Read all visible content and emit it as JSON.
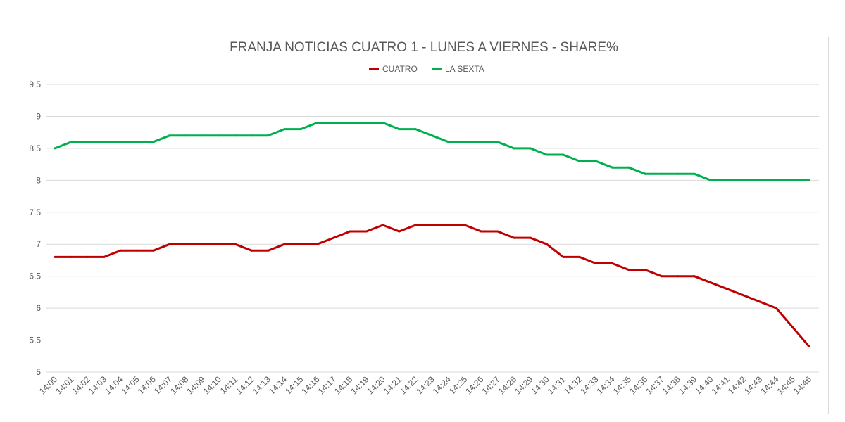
{
  "chart_data": {
    "type": "line",
    "title": "FRANJA NOTICIAS CUATRO 1 - LUNES A VIERNES - SHARE%",
    "xlabel": "",
    "ylabel": "",
    "ylim": [
      5,
      9.5
    ],
    "yticks": [
      "5",
      "5.5",
      "6",
      "6.5",
      "7",
      "7.5",
      "8",
      "8.5",
      "9",
      "9.5"
    ],
    "grid": true,
    "legend": "top",
    "categories": [
      "14:00",
      "14:01",
      "14:02",
      "14:03",
      "14:04",
      "14:05",
      "14:06",
      "14:07",
      "14:08",
      "14:09",
      "14:10",
      "14:11",
      "14:12",
      "14:13",
      "14:14",
      "14:15",
      "14:16",
      "14:17",
      "14:18",
      "14:19",
      "14:20",
      "14:21",
      "14:22",
      "14:23",
      "14:24",
      "14:25",
      "14:26",
      "14:27",
      "14:28",
      "14:29",
      "14:30",
      "14:31",
      "14:32",
      "14:33",
      "14:34",
      "14:35",
      "14:36",
      "14:37",
      "14:38",
      "14:39",
      "14:40",
      "14:41",
      "14:42",
      "14:43",
      "14:44",
      "14:45",
      "14:46"
    ],
    "series": [
      {
        "name": "CUATRO",
        "color": "#c00000",
        "values": [
          6.8,
          6.8,
          6.8,
          6.8,
          6.9,
          6.9,
          6.9,
          7.0,
          7.0,
          7.0,
          7.0,
          7.0,
          6.9,
          6.9,
          7.0,
          7.0,
          7.0,
          7.1,
          7.2,
          7.2,
          7.3,
          7.2,
          7.3,
          7.3,
          7.3,
          7.3,
          7.2,
          7.2,
          7.1,
          7.1,
          7.0,
          6.8,
          6.8,
          6.7,
          6.7,
          6.6,
          6.6,
          6.5,
          6.5,
          6.5,
          6.4,
          6.3,
          6.2,
          6.1,
          6.0,
          5.7,
          5.4
        ]
      },
      {
        "name": "LA SEXTA",
        "color": "#00b050",
        "values": [
          8.5,
          8.6,
          8.6,
          8.6,
          8.6,
          8.6,
          8.6,
          8.7,
          8.7,
          8.7,
          8.7,
          8.7,
          8.7,
          8.7,
          8.8,
          8.8,
          8.9,
          8.9,
          8.9,
          8.9,
          8.9,
          8.8,
          8.8,
          8.7,
          8.6,
          8.6,
          8.6,
          8.6,
          8.5,
          8.5,
          8.4,
          8.4,
          8.3,
          8.3,
          8.2,
          8.2,
          8.1,
          8.1,
          8.1,
          8.1,
          8.0,
          8.0,
          8.0,
          8.0,
          8.0,
          8.0,
          8.0
        ]
      }
    ]
  }
}
